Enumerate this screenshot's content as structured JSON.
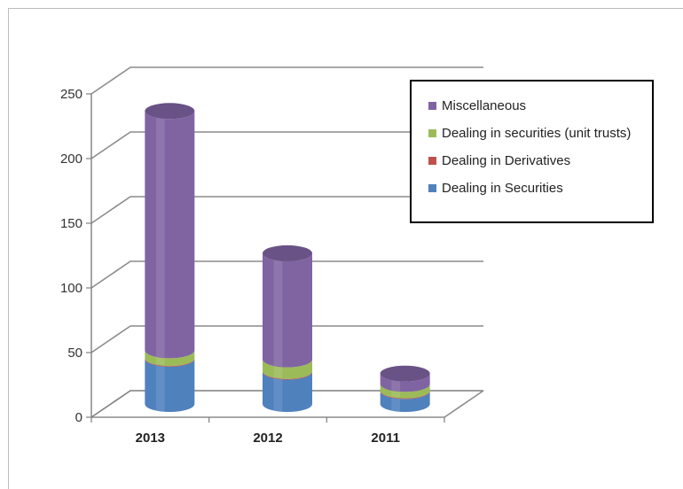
{
  "chart_data": {
    "type": "bar",
    "stacked": true,
    "style": "3d-cylinder",
    "categories": [
      "2013",
      "2012",
      "2011"
    ],
    "series": [
      {
        "name": "Dealing in Securities",
        "color": "#4f81bd",
        "values": [
          35,
          25,
          10
        ]
      },
      {
        "name": "Dealing in Derivatives",
        "color": "#c0504d",
        "values": [
          0.5,
          0.5,
          0.5
        ]
      },
      {
        "name": "Dealing in securities (unit trusts)",
        "color": "#9bbb59",
        "values": [
          6,
          9,
          5
        ]
      },
      {
        "name": "Miscellaneous",
        "color": "#8064a2",
        "values": [
          185,
          82,
          8
        ]
      }
    ],
    "ylim": [
      0,
      250
    ],
    "yticks": [
      "0",
      "50",
      "100",
      "150",
      "200",
      "250"
    ],
    "grid": true,
    "legend_position": "top-right",
    "title": "",
    "xlabel": "",
    "ylabel": ""
  }
}
